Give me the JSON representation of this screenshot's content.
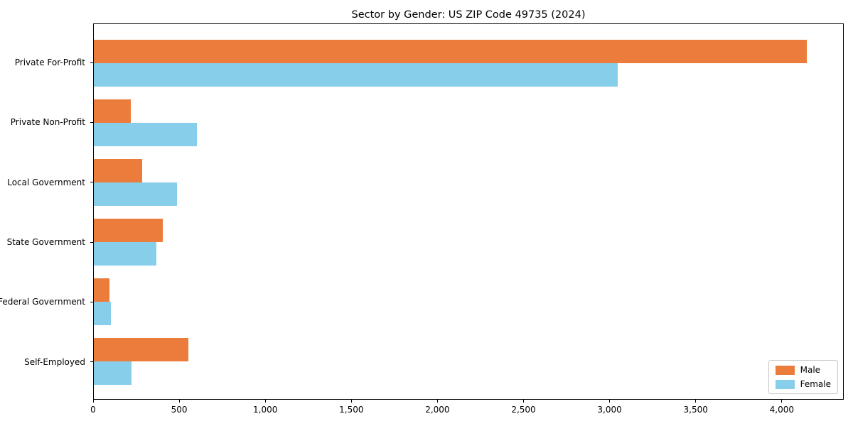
{
  "title": "Sector by Gender: US ZIP Code 49735 (2024)",
  "colors": {
    "male": "#EC7C3B",
    "female": "#87CEEB",
    "spine": "#000000",
    "legend_border": "#C9C9C9",
    "background": "#FFFFFF"
  },
  "legend": {
    "position": "lower right",
    "items": [
      {
        "label": "Male"
      },
      {
        "label": "Female"
      }
    ]
  },
  "chart_data": {
    "type": "bar",
    "orientation": "horizontal",
    "title": "Sector by Gender: US ZIP Code 49735 (2024)",
    "xlabel": "",
    "ylabel": "",
    "categories": [
      "Private For-Profit",
      "Private Non-Profit",
      "Local Government",
      "State Government",
      "Federal Government",
      "Self-Employed"
    ],
    "series": [
      {
        "name": "Male",
        "color": "#EC7C3B",
        "values": [
          4150,
          215,
          280,
          400,
          90,
          550
        ]
      },
      {
        "name": "Female",
        "color": "#87CEEB",
        "values": [
          3050,
          600,
          485,
          365,
          100,
          220
        ]
      }
    ],
    "xlim": [
      0,
      4360
    ],
    "x_ticks": [
      0,
      500,
      1000,
      1500,
      2000,
      2500,
      3000,
      3500,
      4000
    ],
    "x_tick_labels": [
      "0",
      "500",
      "1,000",
      "1,500",
      "2,000",
      "2,500",
      "3,000",
      "3,500",
      "4,000"
    ],
    "grid": false,
    "legend_position": "lower right"
  }
}
